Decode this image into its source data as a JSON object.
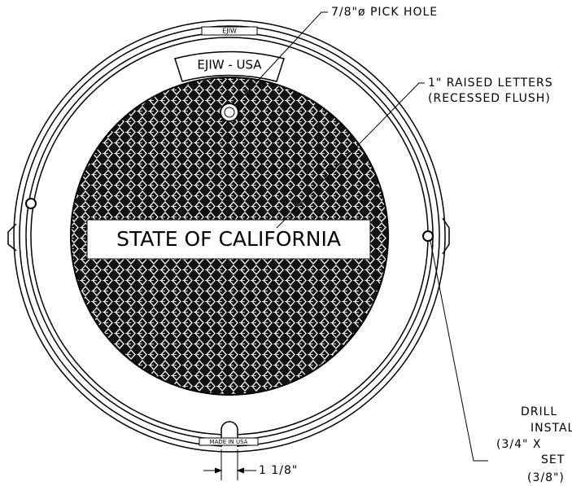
{
  "callouts": {
    "pick_hole": "7/8\"ø PICK HOLE",
    "raised_letters": [
      "1\" RAISED LETTERS",
      "(RECESSED FLUSH)"
    ],
    "drill": [
      "DRILL",
      "INSTAL",
      "(3/4\" X",
      "SET",
      "(3/8\")"
    ],
    "dimension": "1 1/8\""
  },
  "cover": {
    "rim_mark": "EJIW",
    "badge": "EJIW - USA",
    "nameplate": "STATE OF CALIFORNIA",
    "bottom_mark": "MADE IN USA"
  }
}
